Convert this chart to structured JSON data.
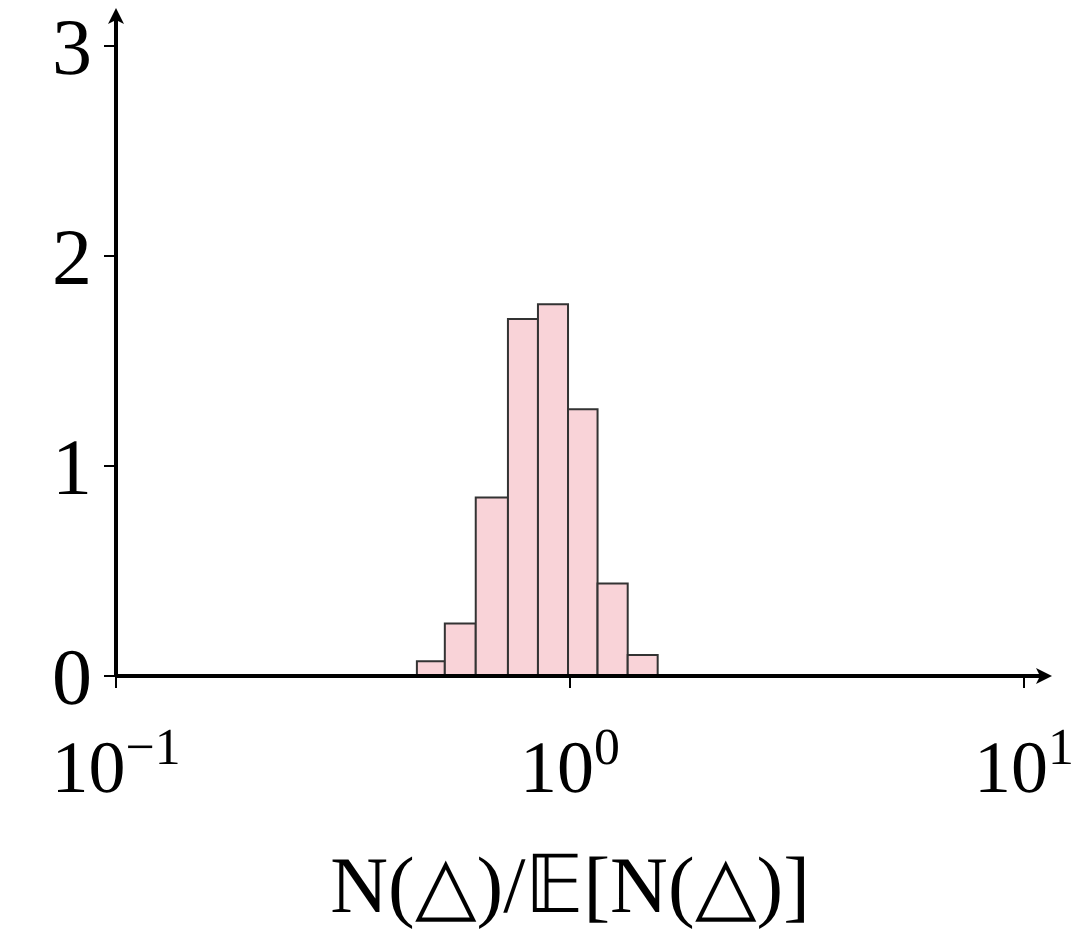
{
  "chart_data": {
    "type": "histogram",
    "xlabel": "N(△)/𝔼[N(△)]",
    "bins": [
      0.46,
      0.53,
      0.62,
      0.73,
      0.85,
      0.99,
      1.15,
      1.34,
      1.56
    ],
    "values": [
      0.07,
      0.25,
      0.85,
      1.7,
      1.77,
      1.27,
      0.44,
      0.1
    ],
    "color": "#f9d3d8",
    "log": "x",
    "xlim": [
      0.1,
      10
    ],
    "xticks": [
      {
        "value": 0.1,
        "label": "10$^{−1}$"
      },
      {
        "value": 1,
        "label": "10$^{0}$"
      },
      {
        "value": 10,
        "label": "10$^{1}$"
      }
    ],
    "ylim": [
      0,
      3
    ],
    "yticks": [
      0,
      1,
      2,
      3
    ],
    "grid": false,
    "legend": false
  }
}
